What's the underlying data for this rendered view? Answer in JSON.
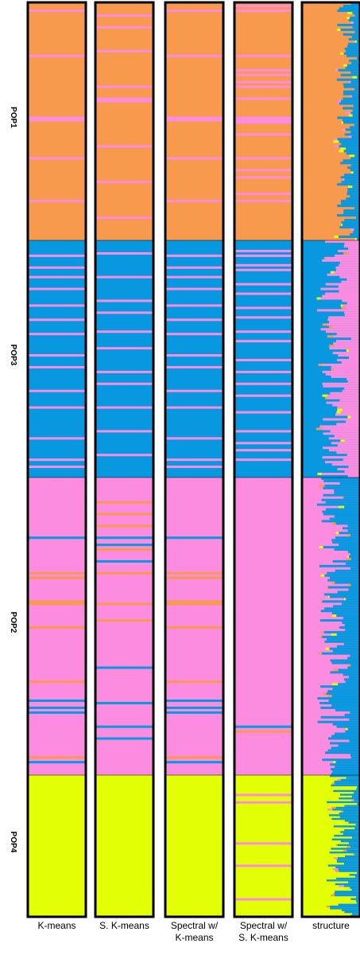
{
  "chart_data": {
    "type": "bar",
    "colors": {
      "orange": "#F79A4E",
      "blue": "#0898E0",
      "pink": "#FC8CE0",
      "yellow": "#E2FF05",
      "border": "#000000"
    },
    "populations": [
      {
        "label": "POP1",
        "n": 100,
        "color": "orange"
      },
      {
        "label": "POP3",
        "n": 100,
        "color": "blue"
      },
      {
        "label": "POP2",
        "n": 126,
        "color": "pink"
      },
      {
        "label": "POP4",
        "n": 76,
        "color": "yellow"
      }
    ],
    "columns": [
      {
        "label_lines": [
          "K-means"
        ],
        "misassigned": [
          {
            "pop": "POP1",
            "color": "pink",
            "individuals": [
              3,
              22,
              48,
              49,
              65,
              83
            ]
          },
          {
            "pop": "POP3",
            "color": "pink",
            "individuals": [
              6,
              11,
              15,
              20,
              27,
              33,
              39,
              48,
              53,
              63,
              70,
              83,
              92,
              95
            ]
          },
          {
            "pop": "POP2",
            "color": "blue",
            "individuals": [
              25,
              94,
              99,
              97,
              120
            ]
          },
          {
            "pop": "POP2",
            "color": "orange",
            "individuals": [
              40,
              42,
              52,
              53,
              63,
              86,
              118
            ]
          },
          {
            "pop": "POP2",
            "color": "pink",
            "individuals": []
          }
        ]
      },
      {
        "label_lines": [
          "S. K-means"
        ],
        "misassigned": [
          {
            "pop": "POP1",
            "color": "pink",
            "individuals": [
              5,
              10,
              20,
              35,
              40,
              41,
              60,
              75,
              90
            ]
          },
          {
            "pop": "POP3",
            "color": "pink",
            "individuals": [
              5,
              15,
              25,
              30,
              38,
              45,
              55,
              60,
              70,
              80,
              90
            ]
          },
          {
            "pop": "POP2",
            "color": "orange",
            "individuals": [
              10,
              15,
              20,
              30,
              40,
              53,
              60
            ]
          },
          {
            "pop": "POP2",
            "color": "blue",
            "individuals": [
              25,
              28,
              35,
              80,
              95,
              105,
              110
            ]
          }
        ]
      },
      {
        "label_lines": [
          "Spectral w/",
          "K-means"
        ],
        "misassigned": [
          {
            "pop": "POP1",
            "color": "pink",
            "individuals": [
              3,
              22,
              48,
              49,
              65,
              83
            ]
          },
          {
            "pop": "POP3",
            "color": "pink",
            "individuals": [
              6,
              11,
              15,
              20,
              27,
              33,
              39,
              48,
              53,
              63,
              70,
              83,
              92,
              95
            ]
          },
          {
            "pop": "POP2",
            "color": "blue",
            "individuals": [
              25,
              94,
              99,
              97,
              120
            ]
          },
          {
            "pop": "POP2",
            "color": "orange",
            "individuals": [
              40,
              42,
              52,
              53,
              63,
              86,
              118
            ]
          }
        ]
      },
      {
        "label_lines": [
          "Spectral w/",
          "S. K-means"
        ],
        "misassigned": [
          {
            "pop": "POP1",
            "color": "pink",
            "individuals": [
              1,
              3,
              22,
              28,
              30,
              33,
              35,
              40,
              48,
              49,
              50,
              55,
              65,
              70,
              73,
              80,
              83
            ]
          },
          {
            "pop": "POP3",
            "color": "pink",
            "individuals": [
              4,
              6,
              10,
              12,
              18,
              22,
              28,
              32,
              38,
              42,
              50,
              55,
              60,
              65,
              72,
              80,
              85,
              88,
              92
            ]
          },
          {
            "pop": "POP2",
            "color": "blue",
            "individuals": [
              105
            ]
          },
          {
            "pop": "POP2",
            "color": "orange",
            "individuals": [
              107
            ]
          },
          {
            "pop": "POP4",
            "color": "pink",
            "individuals": [
              10,
              14,
              36,
              48,
              66
            ]
          }
        ]
      },
      {
        "label_lines": [
          "structure"
        ],
        "admixture": true
      }
    ]
  }
}
